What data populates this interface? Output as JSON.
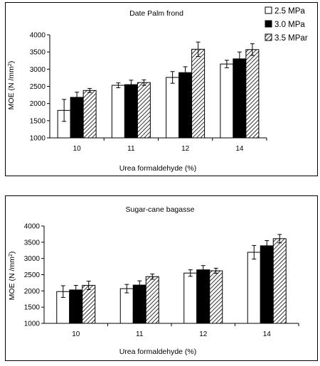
{
  "legend": {
    "entries": [
      {
        "label": "2.5 MPa",
        "fill": "white"
      },
      {
        "label": "3.0  MPa",
        "fill": "black"
      },
      {
        "label": "3.5 MPar",
        "fill": "hatch"
      }
    ]
  },
  "colors": {
    "frame": "#000000",
    "bar_black": "#000000",
    "bar_white": "#ffffff"
  },
  "chart_data": [
    {
      "type": "bar",
      "title": "Date Palm frond",
      "xlabel": "Urea formaldehyde (%)",
      "ylabel_prefix": "MOE  (N /mm",
      "ylabel_sup": "2",
      "ylabel_suffix": ")",
      "categories": [
        "10",
        "11",
        "12",
        "14"
      ],
      "ylim": [
        1000,
        4000
      ],
      "yticks": [
        "1000",
        "1500",
        "2000",
        "2500",
        "3000",
        "3500",
        "4000"
      ],
      "series": [
        {
          "name": "2.5 MPa",
          "values": [
            1800,
            2530,
            2760,
            3150
          ],
          "errors": [
            320,
            70,
            170,
            110
          ]
        },
        {
          "name": "3.0  MPa",
          "values": [
            2180,
            2550,
            2900,
            3300
          ],
          "errors": [
            150,
            130,
            170,
            200
          ]
        },
        {
          "name": "3.5 MPar",
          "values": [
            2380,
            2610,
            3580,
            3570
          ],
          "errors": [
            60,
            80,
            210,
            170
          ]
        }
      ],
      "grid": false,
      "legend_position": "top-right, outside plot"
    },
    {
      "type": "bar",
      "title": "Sugar-cane bagasse",
      "xlabel": "Urea formaldehyde (%)",
      "ylabel_prefix": "MOE  (N /mm",
      "ylabel_sup": "2",
      "ylabel_suffix": ")",
      "categories": [
        "10",
        "11",
        "12",
        "14"
      ],
      "ylim": [
        1000,
        4000
      ],
      "yticks": [
        "1000",
        "1500",
        "2000",
        "2500",
        "3000",
        "3500",
        "4000"
      ],
      "series": [
        {
          "name": "2.5 MPa",
          "values": [
            1980,
            2070,
            2550,
            3190
          ],
          "errors": [
            180,
            130,
            100,
            210
          ]
        },
        {
          "name": "3.0  MPa",
          "values": [
            2030,
            2180,
            2650,
            3390
          ],
          "errors": [
            140,
            130,
            130,
            160
          ]
        },
        {
          "name": "3.5 MPar",
          "values": [
            2170,
            2440,
            2620,
            3610
          ],
          "errors": [
            130,
            80,
            80,
            130
          ]
        }
      ],
      "grid": false,
      "legend_position": "none"
    }
  ]
}
